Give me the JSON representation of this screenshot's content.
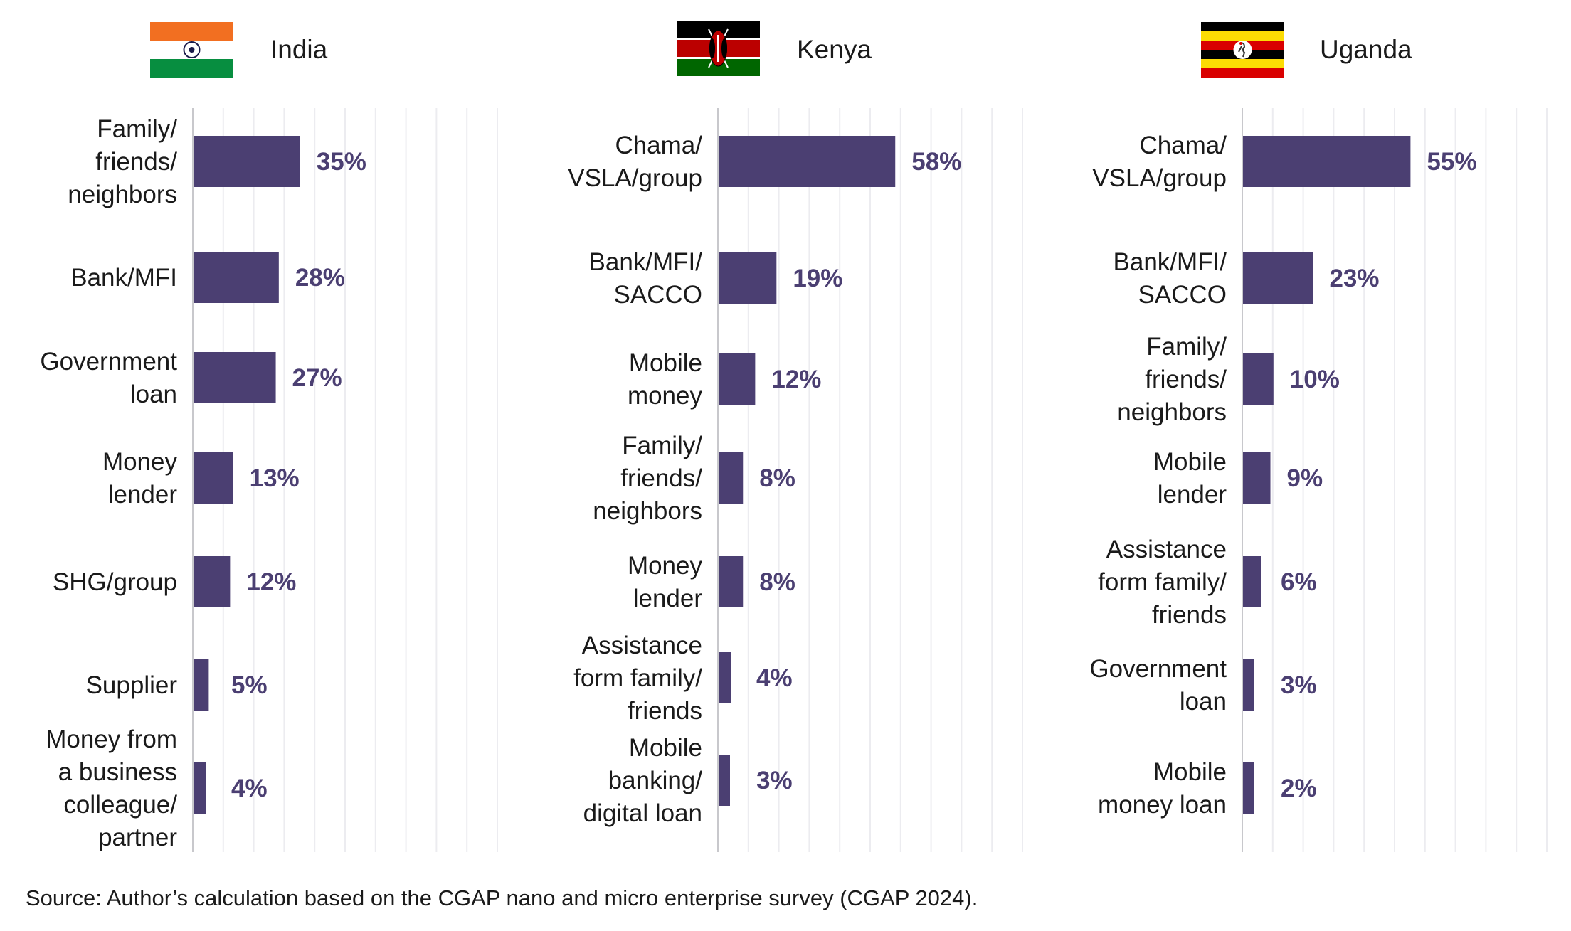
{
  "chart_data": [
    {
      "type": "bar",
      "orientation": "horizontal",
      "title": "India",
      "categories": [
        "Family/\nfriends/\nneighbors",
        "Bank/MFI",
        "Government\nloan",
        "Money\nlender",
        "SHG/group",
        "Supplier",
        "Money from\na business\ncolleague/\npartner"
      ],
      "values": [
        35,
        28,
        27,
        13,
        12,
        5,
        4
      ],
      "value_labels": [
        "35%",
        "28%",
        "27%",
        "13%",
        "12%",
        "5%",
        "4%"
      ],
      "xlim": [
        0,
        100
      ],
      "grid": true,
      "grid_step": 10,
      "xlabel": "",
      "ylabel": ""
    },
    {
      "type": "bar",
      "orientation": "horizontal",
      "title": "Kenya",
      "categories": [
        "Chama/\nVSLA/group",
        "Bank/MFI/\nSACCO",
        "Mobile\nmoney",
        "Family/\nfriends/\nneighbors",
        "Money\nlender",
        "Assistance\nform family/\nfriends",
        "Mobile\nbanking/\ndigital loan"
      ],
      "values": [
        58,
        19,
        12,
        8,
        8,
        4,
        3
      ],
      "value_labels": [
        "58%",
        "19%",
        "12%",
        "8%",
        "8%",
        "4%",
        "3%"
      ],
      "xlim": [
        0,
        100
      ],
      "grid": true,
      "grid_step": 10,
      "xlabel": "",
      "ylabel": ""
    },
    {
      "type": "bar",
      "orientation": "horizontal",
      "title": "Uganda",
      "categories": [
        "Chama/\nVSLA/group",
        "Bank/MFI/\nSACCO",
        "Family/\nfriends/\nneighbors",
        "Mobile\nlender",
        "Assistance\nform family/\nfriends",
        "Government\nloan",
        "Mobile\nmoney loan"
      ],
      "values": [
        55,
        23,
        10,
        9,
        6,
        3,
        2
      ],
      "value_labels": [
        "55%",
        "23%",
        "10%",
        "9%",
        "6%",
        "3%",
        "2%"
      ],
      "xlim": [
        0,
        100
      ],
      "grid": true,
      "grid_step": 10,
      "xlabel": "",
      "ylabel": ""
    }
  ],
  "countries": [
    {
      "name": "India",
      "flag": "india-flag"
    },
    {
      "name": "Kenya",
      "flag": "kenya-flag"
    },
    {
      "name": "Uganda",
      "flag": "uganda-flag"
    }
  ],
  "colors": {
    "bar": "#4b3f72",
    "value_text": "#4b3f72",
    "grid": "#ececf0",
    "axis": "#c8c8cc"
  },
  "source": "Source: Author’s calculation based on the CGAP nano and micro enterprise survey (CGAP 2024)."
}
